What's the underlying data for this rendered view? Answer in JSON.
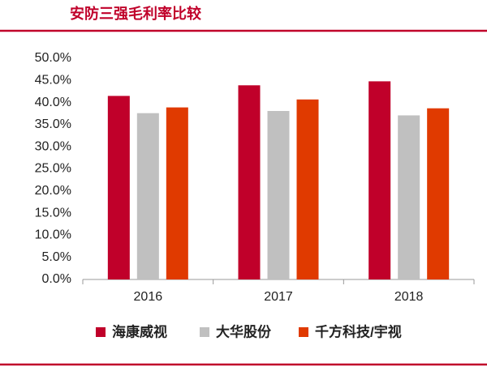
{
  "chart_data": {
    "type": "bar",
    "title": "安防三强毛利率比较",
    "categories": [
      "2016",
      "2017",
      "2018"
    ],
    "series": [
      {
        "name": "海康威视",
        "color": "#c0002a",
        "values": [
          41.5,
          43.9,
          44.8
        ]
      },
      {
        "name": "大华股份",
        "color": "#c0c0c0",
        "values": [
          37.6,
          38.1,
          37.1
        ]
      },
      {
        "name": "千方科技/宇视",
        "color": "#e03a00",
        "values": [
          38.9,
          40.7,
          38.7
        ]
      }
    ],
    "ylim": [
      0,
      50
    ],
    "yticks": [
      {
        "value": 0,
        "label": "0.0%"
      },
      {
        "value": 5,
        "label": "5.0%"
      },
      {
        "value": 10,
        "label": "10.0%"
      },
      {
        "value": 15,
        "label": "15.0%"
      },
      {
        "value": 20,
        "label": "20.0%"
      },
      {
        "value": 25,
        "label": "25.0%"
      },
      {
        "value": 30,
        "label": "30.0%"
      },
      {
        "value": 35,
        "label": "35.0%"
      },
      {
        "value": 40,
        "label": "40.0%"
      },
      {
        "value": 45,
        "label": "45.0%"
      },
      {
        "value": 50,
        "label": "50.0%"
      }
    ],
    "grid": false,
    "legend": "bottom"
  }
}
